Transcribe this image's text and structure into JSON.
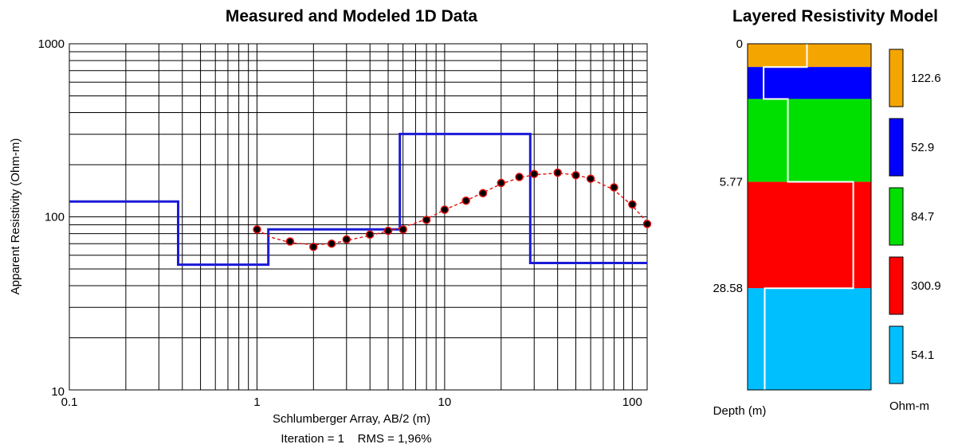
{
  "chart_data": [
    {
      "type": "line",
      "title": "Measured and Modeled 1D Data",
      "xlabel": "Schlumberger Array, AB/2 (m)",
      "ylabel": "Apparent Resistivity (Ohm-m)",
      "x_scale": "log",
      "y_scale": "log",
      "xlim": [
        0.1,
        120
      ],
      "ylim": [
        10,
        1000
      ],
      "grid": true,
      "x_tick_labels": [
        {
          "value": 0.1,
          "label": "0.1"
        },
        {
          "value": 1,
          "label": "1"
        },
        {
          "value": 10,
          "label": "10"
        },
        {
          "value": 100,
          "label": "100"
        }
      ],
      "y_tick_labels": [
        {
          "value": 10,
          "label": "10"
        },
        {
          "value": 100,
          "label": "100"
        },
        {
          "value": 1000,
          "label": "1000"
        }
      ],
      "caption": "Iteration = 1    RMS = 1,96%",
      "series": [
        {
          "kind": "step-model",
          "color": "#1a1ad6",
          "points": [
            [
              0.1,
              122.6
            ],
            [
              0.38,
              122.6
            ],
            [
              0.38,
              52.9
            ],
            [
              1.15,
              52.9
            ],
            [
              1.15,
              84.7
            ],
            [
              5.77,
              84.7
            ],
            [
              5.77,
              300.9
            ],
            [
              28.58,
              300.9
            ],
            [
              28.58,
              54.1
            ],
            [
              120,
              54.1
            ]
          ]
        },
        {
          "kind": "measured",
          "marker_color": "#000000",
          "x": [
            1,
            1.5,
            2,
            2.5,
            3,
            4,
            5,
            6,
            8,
            10,
            13,
            16,
            20,
            25,
            30,
            40,
            50,
            60,
            80,
            100,
            120
          ],
          "y": [
            84.5,
            72,
            67,
            70,
            74,
            79,
            83,
            84.5,
            96,
            110,
            124,
            137,
            157,
            170,
            177,
            180,
            174,
            166,
            148,
            118,
            91
          ]
        },
        {
          "kind": "modeled",
          "color": "#e01010",
          "x": [
            1,
            1.2,
            1.5,
            2,
            2.5,
            3,
            4,
            5,
            6,
            8,
            10,
            13,
            16,
            20,
            25,
            30,
            40,
            50,
            60,
            80,
            100,
            120
          ],
          "y": [
            84,
            76,
            71,
            69,
            70,
            73,
            78,
            83,
            87,
            97,
            110,
            124,
            138,
            155,
            168,
            175,
            179,
            175,
            166,
            143,
            116,
            93
          ]
        }
      ]
    },
    {
      "type": "bar",
      "title": "Layered Resistivity Model",
      "depth_label": "Depth (m)",
      "unit_label": "Ohm-m",
      "depth_ticks": [
        "0",
        "5.77",
        "28.58"
      ],
      "depth_range": [
        0,
        120
      ],
      "layers": [
        {
          "top": 0,
          "bottom": 0.38,
          "resistivity": 122.6,
          "color": "#f5a500"
        },
        {
          "top": 0.38,
          "bottom": 1.15,
          "resistivity": 52.9,
          "color": "#0000ff"
        },
        {
          "top": 1.15,
          "bottom": 5.77,
          "resistivity": 84.7,
          "color": "#00e000"
        },
        {
          "top": 5.77,
          "bottom": 28.58,
          "resistivity": 300.9,
          "color": "#ff0000"
        },
        {
          "top": 28.58,
          "bottom": 120,
          "resistivity": 54.1,
          "color": "#00bfff"
        }
      ],
      "legend": [
        {
          "label": "122.6",
          "color": "#f5a500"
        },
        {
          "label": "52.9",
          "color": "#0000ff"
        },
        {
          "label": "84.7",
          "color": "#00e000"
        },
        {
          "label": "300.9",
          "color": "#ff0000"
        },
        {
          "label": "54.1",
          "color": "#00bfff"
        }
      ]
    }
  ]
}
